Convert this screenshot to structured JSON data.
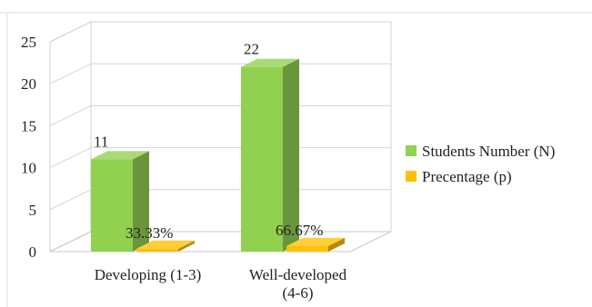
{
  "chart_data": {
    "type": "bar",
    "style": "3d-clustered-column",
    "categories": [
      {
        "lines": [
          "Developing (1-3)"
        ]
      },
      {
        "lines": [
          "Well-developed",
          "(4-6)"
        ]
      }
    ],
    "series": [
      {
        "name": "Students Number (N)",
        "color": "#92d050",
        "values": [
          11,
          22
        ],
        "labels": [
          "11",
          "22"
        ]
      },
      {
        "name": "Precentage (p)",
        "color": "#ffc000",
        "values": [
          0.3333,
          0.6667
        ],
        "labels": [
          "33.33%",
          "66.67%"
        ]
      }
    ],
    "ylim": [
      0,
      25
    ],
    "yticks": [
      0,
      5,
      10,
      15,
      20,
      25
    ],
    "grid": true,
    "legend_position": "right",
    "title": "",
    "xlabel": "",
    "ylabel": ""
  }
}
